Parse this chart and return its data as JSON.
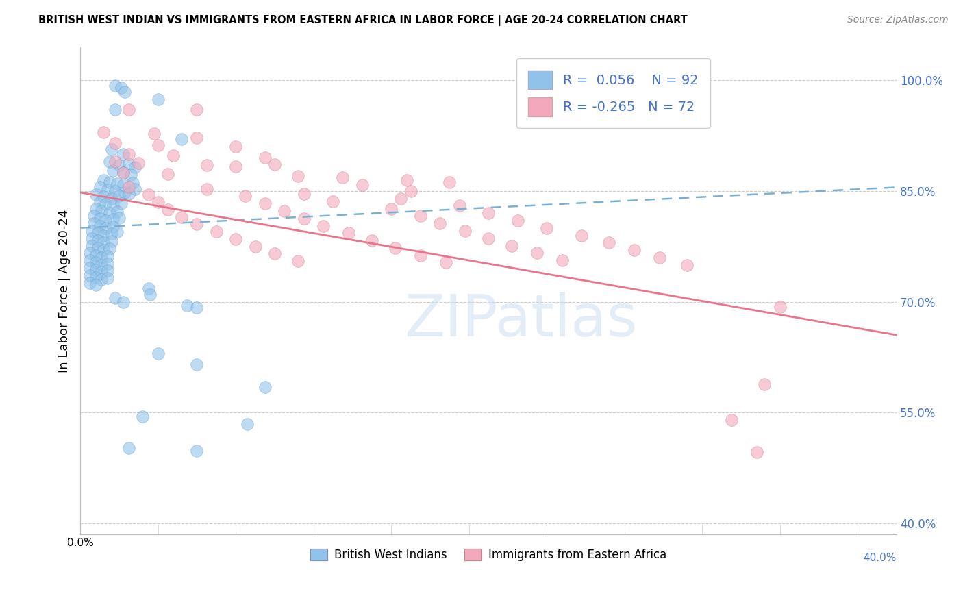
{
  "title": "BRITISH WEST INDIAN VS IMMIGRANTS FROM EASTERN AFRICA IN LABOR FORCE | AGE 20-24 CORRELATION CHART",
  "source": "Source: ZipAtlas.com",
  "ylabel": "In Labor Force | Age 20-24",
  "r_blue": 0.056,
  "n_blue": 92,
  "r_pink": -0.265,
  "n_pink": 72,
  "blue_color": "#91C3EA",
  "pink_color": "#F4A8BB",
  "trend_blue_color": "#7aafd4",
  "trend_pink_color": "#E8758A",
  "xmin": 0.0,
  "xmax": 0.42,
  "ymin": 0.385,
  "ymax": 1.045,
  "yticks": [
    0.4,
    0.55,
    0.7,
    0.85,
    1.0
  ],
  "ytick_labels": [
    "40.0%",
    "55.0%",
    "70.0%",
    "85.0%",
    "100.0%"
  ],
  "xtick_left_label": "0.0%",
  "xtick_right_label": "40.0%",
  "watermark": "ZIPatlas",
  "legend_label_blue": "British West Indians",
  "legend_label_pink": "Immigrants from Eastern Africa",
  "blue_trend_x": [
    0.0,
    0.42
  ],
  "blue_trend_y": [
    0.8,
    0.855
  ],
  "pink_trend_x": [
    0.0,
    0.42
  ],
  "pink_trend_y": [
    0.848,
    0.655
  ],
  "blue_scatter": [
    [
      0.018,
      0.993
    ],
    [
      0.021,
      0.99
    ],
    [
      0.023,
      0.984
    ],
    [
      0.04,
      0.974
    ],
    [
      0.018,
      0.96
    ],
    [
      0.052,
      0.92
    ],
    [
      0.016,
      0.906
    ],
    [
      0.022,
      0.9
    ],
    [
      0.015,
      0.89
    ],
    [
      0.02,
      0.885
    ],
    [
      0.025,
      0.887
    ],
    [
      0.028,
      0.882
    ],
    [
      0.017,
      0.878
    ],
    [
      0.022,
      0.875
    ],
    [
      0.026,
      0.872
    ],
    [
      0.012,
      0.865
    ],
    [
      0.015,
      0.862
    ],
    [
      0.019,
      0.86
    ],
    [
      0.022,
      0.858
    ],
    [
      0.027,
      0.861
    ],
    [
      0.01,
      0.855
    ],
    [
      0.014,
      0.852
    ],
    [
      0.018,
      0.85
    ],
    [
      0.023,
      0.848
    ],
    [
      0.028,
      0.853
    ],
    [
      0.008,
      0.845
    ],
    [
      0.012,
      0.842
    ],
    [
      0.016,
      0.84
    ],
    [
      0.02,
      0.843
    ],
    [
      0.025,
      0.846
    ],
    [
      0.01,
      0.835
    ],
    [
      0.013,
      0.832
    ],
    [
      0.017,
      0.83
    ],
    [
      0.021,
      0.833
    ],
    [
      0.008,
      0.826
    ],
    [
      0.011,
      0.823
    ],
    [
      0.015,
      0.82
    ],
    [
      0.019,
      0.822
    ],
    [
      0.007,
      0.816
    ],
    [
      0.01,
      0.813
    ],
    [
      0.013,
      0.81
    ],
    [
      0.017,
      0.812
    ],
    [
      0.02,
      0.814
    ],
    [
      0.007,
      0.806
    ],
    [
      0.01,
      0.803
    ],
    [
      0.013,
      0.8
    ],
    [
      0.017,
      0.802
    ],
    [
      0.006,
      0.796
    ],
    [
      0.009,
      0.793
    ],
    [
      0.012,
      0.79
    ],
    [
      0.016,
      0.792
    ],
    [
      0.019,
      0.795
    ],
    [
      0.006,
      0.786
    ],
    [
      0.009,
      0.783
    ],
    [
      0.012,
      0.78
    ],
    [
      0.016,
      0.782
    ],
    [
      0.006,
      0.776
    ],
    [
      0.009,
      0.773
    ],
    [
      0.012,
      0.77
    ],
    [
      0.015,
      0.772
    ],
    [
      0.005,
      0.766
    ],
    [
      0.008,
      0.763
    ],
    [
      0.011,
      0.76
    ],
    [
      0.014,
      0.762
    ],
    [
      0.005,
      0.756
    ],
    [
      0.008,
      0.753
    ],
    [
      0.011,
      0.75
    ],
    [
      0.014,
      0.752
    ],
    [
      0.005,
      0.746
    ],
    [
      0.008,
      0.743
    ],
    [
      0.011,
      0.74
    ],
    [
      0.014,
      0.742
    ],
    [
      0.005,
      0.736
    ],
    [
      0.008,
      0.733
    ],
    [
      0.011,
      0.73
    ],
    [
      0.014,
      0.732
    ],
    [
      0.005,
      0.726
    ],
    [
      0.008,
      0.723
    ],
    [
      0.035,
      0.718
    ],
    [
      0.018,
      0.705
    ],
    [
      0.022,
      0.7
    ],
    [
      0.036,
      0.71
    ],
    [
      0.055,
      0.695
    ],
    [
      0.06,
      0.692
    ],
    [
      0.04,
      0.63
    ],
    [
      0.06,
      0.615
    ],
    [
      0.095,
      0.585
    ],
    [
      0.032,
      0.545
    ],
    [
      0.086,
      0.535
    ],
    [
      0.025,
      0.502
    ],
    [
      0.06,
      0.498
    ]
  ],
  "pink_scatter": [
    [
      0.025,
      0.96
    ],
    [
      0.06,
      0.96
    ],
    [
      0.012,
      0.93
    ],
    [
      0.038,
      0.928
    ],
    [
      0.06,
      0.922
    ],
    [
      0.018,
      0.915
    ],
    [
      0.04,
      0.912
    ],
    [
      0.08,
      0.91
    ],
    [
      0.025,
      0.9
    ],
    [
      0.048,
      0.898
    ],
    [
      0.095,
      0.895
    ],
    [
      0.018,
      0.89
    ],
    [
      0.03,
      0.888
    ],
    [
      0.065,
      0.885
    ],
    [
      0.08,
      0.883
    ],
    [
      0.1,
      0.886
    ],
    [
      0.022,
      0.875
    ],
    [
      0.045,
      0.873
    ],
    [
      0.112,
      0.87
    ],
    [
      0.135,
      0.868
    ],
    [
      0.168,
      0.865
    ],
    [
      0.19,
      0.862
    ],
    [
      0.025,
      0.855
    ],
    [
      0.065,
      0.853
    ],
    [
      0.145,
      0.858
    ],
    [
      0.17,
      0.85
    ],
    [
      0.035,
      0.845
    ],
    [
      0.085,
      0.843
    ],
    [
      0.115,
      0.846
    ],
    [
      0.165,
      0.84
    ],
    [
      0.04,
      0.835
    ],
    [
      0.095,
      0.833
    ],
    [
      0.13,
      0.836
    ],
    [
      0.195,
      0.83
    ],
    [
      0.045,
      0.825
    ],
    [
      0.105,
      0.823
    ],
    [
      0.16,
      0.826
    ],
    [
      0.21,
      0.82
    ],
    [
      0.052,
      0.815
    ],
    [
      0.115,
      0.813
    ],
    [
      0.175,
      0.816
    ],
    [
      0.225,
      0.81
    ],
    [
      0.06,
      0.805
    ],
    [
      0.125,
      0.803
    ],
    [
      0.185,
      0.806
    ],
    [
      0.24,
      0.8
    ],
    [
      0.07,
      0.795
    ],
    [
      0.138,
      0.793
    ],
    [
      0.198,
      0.796
    ],
    [
      0.258,
      0.79
    ],
    [
      0.08,
      0.785
    ],
    [
      0.15,
      0.783
    ],
    [
      0.21,
      0.786
    ],
    [
      0.272,
      0.78
    ],
    [
      0.09,
      0.775
    ],
    [
      0.162,
      0.773
    ],
    [
      0.222,
      0.776
    ],
    [
      0.285,
      0.77
    ],
    [
      0.1,
      0.765
    ],
    [
      0.175,
      0.763
    ],
    [
      0.235,
      0.766
    ],
    [
      0.298,
      0.76
    ],
    [
      0.112,
      0.755
    ],
    [
      0.188,
      0.753
    ],
    [
      0.248,
      0.756
    ],
    [
      0.312,
      0.75
    ],
    [
      0.36,
      0.693
    ],
    [
      0.352,
      0.588
    ],
    [
      0.335,
      0.54
    ],
    [
      0.348,
      0.497
    ]
  ]
}
